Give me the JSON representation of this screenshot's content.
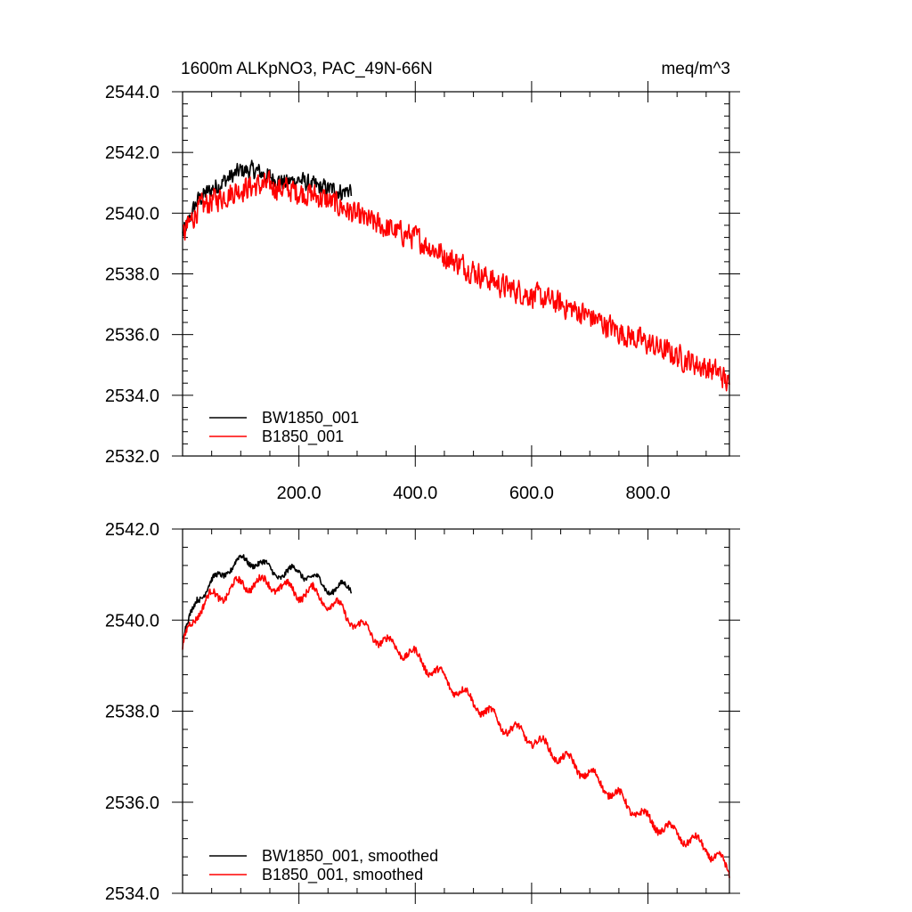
{
  "chart_data": [
    {
      "type": "line",
      "title": "1600m ALKpNO3, PAC_49N-66N",
      "units": "meq/m^3",
      "xlim": [
        0,
        940
      ],
      "ylim": [
        2532.0,
        2544.0
      ],
      "x_ticks": [
        200,
        400,
        600,
        800
      ],
      "x_tick_labels": [
        "200.0",
        "400.0",
        "600.0",
        "800.0"
      ],
      "y_ticks": [
        2532,
        2534,
        2536,
        2538,
        2540,
        2542,
        2544
      ],
      "y_tick_labels": [
        "2532.0",
        "2534.0",
        "2536.0",
        "2538.0",
        "2540.0",
        "2542.0",
        "2544.0"
      ],
      "legend_position": "bottom-left",
      "series": [
        {
          "name": "BW1850_001",
          "color": "#000000",
          "x": [
            0,
            10,
            25,
            50,
            75,
            100,
            125,
            150,
            175,
            200,
            225,
            250,
            275,
            290
          ],
          "y": [
            2539.3,
            2539.7,
            2540.4,
            2540.8,
            2541.1,
            2541.4,
            2541.4,
            2541.2,
            2541.0,
            2541.1,
            2540.9,
            2540.8,
            2540.7,
            2540.8
          ],
          "noise": 0.4
        },
        {
          "name": "B1850_001",
          "color": "#ff0000",
          "x": [
            0,
            10,
            25,
            50,
            75,
            100,
            125,
            150,
            175,
            200,
            225,
            250,
            275,
            300,
            350,
            400,
            450,
            500,
            550,
            600,
            650,
            700,
            750,
            800,
            850,
            900,
            925,
            940
          ],
          "y": [
            2539.2,
            2539.6,
            2540.1,
            2540.4,
            2540.6,
            2540.8,
            2540.9,
            2540.9,
            2540.8,
            2540.7,
            2540.6,
            2540.4,
            2540.2,
            2539.9,
            2539.5,
            2539.2,
            2538.6,
            2538.1,
            2537.6,
            2537.3,
            2537.0,
            2536.6,
            2536.1,
            2535.7,
            2535.3,
            2534.9,
            2534.7,
            2534.3
          ],
          "noise": 0.55
        }
      ]
    },
    {
      "type": "line",
      "title": "",
      "xlim": [
        0,
        940
      ],
      "ylim": [
        2534.0,
        2542.0
      ],
      "x_ticks": [
        200,
        400,
        600,
        800
      ],
      "y_ticks": [
        2534,
        2536,
        2538,
        2540,
        2542
      ],
      "y_tick_labels": [
        "2534.0",
        "2536.0",
        "2538.0",
        "2540.0",
        "2542.0"
      ],
      "legend_position": "bottom-left",
      "series": [
        {
          "name": "BW1850_001, smoothed",
          "color": "#000000",
          "x": [
            0,
            10,
            25,
            50,
            75,
            100,
            125,
            150,
            175,
            200,
            225,
            250,
            275,
            290
          ],
          "y": [
            2539.6,
            2539.9,
            2540.5,
            2540.8,
            2541.1,
            2541.3,
            2541.3,
            2541.1,
            2541.0,
            2541.1,
            2540.9,
            2540.7,
            2540.7,
            2540.7
          ],
          "noise": 0.12
        },
        {
          "name": "B1850_001, smoothed",
          "color": "#ff0000",
          "x": [
            0,
            10,
            25,
            50,
            75,
            100,
            125,
            150,
            175,
            200,
            225,
            250,
            275,
            300,
            350,
            400,
            450,
            500,
            550,
            600,
            650,
            700,
            750,
            800,
            850,
            900,
            925,
            940
          ],
          "y": [
            2539.3,
            2539.8,
            2540.2,
            2540.5,
            2540.6,
            2540.8,
            2540.8,
            2540.8,
            2540.7,
            2540.6,
            2540.6,
            2540.4,
            2540.2,
            2539.9,
            2539.5,
            2539.2,
            2538.7,
            2538.2,
            2537.7,
            2537.4,
            2537.0,
            2536.6,
            2536.1,
            2535.6,
            2535.3,
            2535.0,
            2534.7,
            2534.4
          ],
          "noise": 0.15
        }
      ]
    }
  ]
}
